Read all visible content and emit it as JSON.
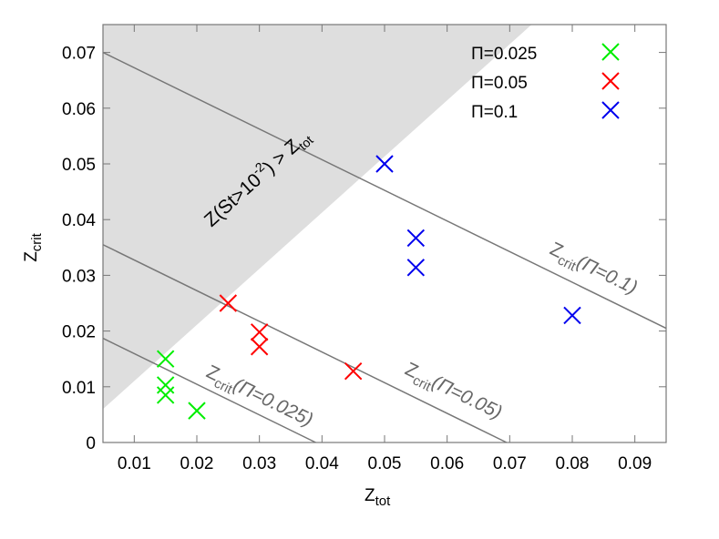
{
  "chart_data": {
    "type": "scatter",
    "xlabel": {
      "main": "Z",
      "sub": "tot"
    },
    "ylabel": {
      "main": "Z",
      "sub": "crit"
    },
    "xlim": [
      0.005,
      0.095
    ],
    "ylim": [
      0,
      0.075
    ],
    "xticks": [
      "0.01",
      "0.02",
      "0.03",
      "0.04",
      "0.05",
      "0.06",
      "0.07",
      "0.08",
      "0.09"
    ],
    "xtick_values": [
      0.01,
      0.02,
      0.03,
      0.04,
      0.05,
      0.06,
      0.07,
      0.08,
      0.09
    ],
    "yticks": [
      "0",
      "0.01",
      "0.02",
      "0.03",
      "0.04",
      "0.05",
      "0.06",
      "0.07"
    ],
    "ytick_values": [
      0,
      0.01,
      0.02,
      0.03,
      0.04,
      0.05,
      0.06,
      0.07
    ],
    "grid": false,
    "legend_position": "top-right",
    "series": [
      {
        "name": "Π=0.025",
        "color": "#00ee00",
        "marker": "x",
        "x": [
          0.015,
          0.015,
          0.015,
          0.02
        ],
        "y": [
          0.015,
          0.0103,
          0.0085,
          0.0057
        ]
      },
      {
        "name": "Π=0.05",
        "color": "#ff0000",
        "marker": "x",
        "x": [
          0.025,
          0.03,
          0.03,
          0.045
        ],
        "y": [
          0.025,
          0.0198,
          0.0172,
          0.0128
        ]
      },
      {
        "name": "Π=0.1",
        "color": "#0000ee",
        "marker": "x",
        "x": [
          0.05,
          0.055,
          0.055,
          0.08
        ],
        "y": [
          0.05,
          0.0367,
          0.0314,
          0.0228
        ]
      }
    ],
    "lines": [
      {
        "label_main": "Z",
        "label_sub": "crit",
        "label_rest": "(Π=0.1)",
        "x": [
          0.005,
          0.095
        ],
        "y": [
          0.07,
          0.0205
        ]
      },
      {
        "label_main": "Z",
        "label_sub": "crit",
        "label_rest": "(Π=0.05)",
        "x": [
          0.005,
          0.0695
        ],
        "y": [
          0.0355,
          0
        ]
      },
      {
        "label_main": "Z",
        "label_sub": "crit",
        "label_rest": "(Π=0.025)",
        "x": [
          0.005,
          0.039
        ],
        "y": [
          0.0187,
          0
        ]
      }
    ],
    "line_color": "#777777",
    "shaded_region": {
      "boundary_x": [
        0.005,
        0.0735
      ],
      "boundary_y": [
        0.006,
        0.075
      ],
      "side": "above",
      "color": "#dedede",
      "label_pre": "Z(St>10",
      "label_sup": "-2",
      "label_mid": ") > Z",
      "label_sub": "tot"
    }
  }
}
